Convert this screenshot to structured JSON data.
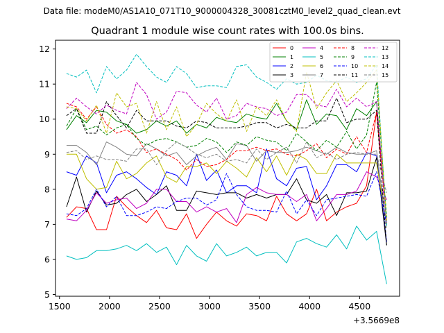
{
  "suptitle": "Data file: modeM0/AS1A10_071T10_9000004328_30081cztM0_level2_quad_clean.evt",
  "chart_data": {
    "type": "line",
    "title": "Quadrant 1 module wise count rates with 100.0s bins.",
    "xlabel": "",
    "ylabel": "",
    "offset_text": "+3.5669e8",
    "xlim": [
      1460,
      4900
    ],
    "ylim": [
      4.95,
      12.25
    ],
    "x_ticks": [
      1500,
      2000,
      2500,
      3000,
      3500,
      4000,
      4500
    ],
    "y_ticks": [
      5,
      6,
      7,
      8,
      9,
      10,
      11,
      12
    ],
    "grid": false,
    "legend_position": "top-right",
    "x": [
      1570,
      1670,
      1770,
      1870,
      1970,
      2070,
      2170,
      2270,
      2370,
      2470,
      2570,
      2670,
      2770,
      2870,
      2970,
      3070,
      3170,
      3270,
      3370,
      3470,
      3570,
      3670,
      3770,
      3870,
      3970,
      4070,
      4170,
      4270,
      4370,
      4470,
      4570,
      4670,
      4770
    ],
    "series": [
      {
        "name": "0",
        "color": "#ff0000",
        "dashed": false,
        "values": [
          7.2,
          7.5,
          7.45,
          6.85,
          6.85,
          7.8,
          7.5,
          7.25,
          7.05,
          7.4,
          6.9,
          6.85,
          7.3,
          6.6,
          7.0,
          7.35,
          7.1,
          6.95,
          7.3,
          7.25,
          7.1,
          7.8,
          7.3,
          7.1,
          7.3,
          8.0,
          7.1,
          7.35,
          7.5,
          7.6,
          8.1,
          10.2,
          7.1
        ]
      },
      {
        "name": "1",
        "color": "#008000",
        "dashed": false,
        "values": [
          9.7,
          10.1,
          9.9,
          10.25,
          10.2,
          9.95,
          9.85,
          9.6,
          9.7,
          9.95,
          9.8,
          9.95,
          9.6,
          9.85,
          9.75,
          10.05,
          9.95,
          9.9,
          10.15,
          10.05,
          10.0,
          10.45,
          9.95,
          9.7,
          10.55,
          9.85,
          10.15,
          10.1,
          9.7,
          10.3,
          10.1,
          10.5,
          7.0
        ]
      },
      {
        "name": "2",
        "color": "#0000ff",
        "dashed": false,
        "values": [
          8.5,
          8.4,
          8.95,
          8.75,
          7.9,
          8.4,
          8.5,
          8.3,
          8.05,
          7.85,
          8.5,
          8.4,
          8.1,
          9.0,
          8.25,
          8.55,
          7.9,
          8.1,
          8.1,
          7.9,
          9.15,
          8.3,
          8.1,
          8.6,
          8.65,
          7.7,
          8.1,
          8.7,
          8.7,
          8.5,
          9.05,
          8.95,
          6.5
        ]
      },
      {
        "name": "3",
        "color": "#000000",
        "dashed": false,
        "values": [
          7.5,
          8.35,
          7.35,
          7.95,
          7.55,
          7.6,
          7.85,
          8.0,
          7.65,
          7.85,
          8.1,
          7.4,
          7.4,
          7.95,
          7.9,
          7.85,
          7.9,
          7.9,
          7.75,
          7.85,
          7.75,
          7.85,
          7.85,
          8.3,
          7.7,
          7.6,
          7.85,
          7.25,
          7.9,
          7.9,
          7.95,
          8.9,
          6.4
        ]
      },
      {
        "name": "4",
        "color": "#c000c0",
        "dashed": false,
        "values": [
          7.15,
          7.1,
          7.4,
          7.9,
          7.6,
          7.7,
          7.75,
          7.45,
          7.6,
          8.0,
          8.0,
          7.65,
          7.65,
          7.35,
          7.5,
          7.35,
          7.45,
          7.05,
          7.85,
          8.05,
          7.9,
          7.85,
          7.85,
          7.65,
          7.85,
          7.1,
          7.45,
          7.85,
          7.85,
          7.95,
          8.5,
          8.35,
          7.7
        ]
      },
      {
        "name": "5",
        "color": "#00bfbf",
        "dashed": false,
        "values": [
          6.1,
          6.0,
          6.05,
          6.25,
          6.25,
          6.3,
          6.4,
          6.25,
          6.45,
          6.2,
          6.35,
          5.85,
          6.4,
          6.1,
          5.95,
          6.45,
          6.1,
          6.2,
          6.35,
          6.1,
          6.2,
          6.2,
          5.9,
          6.5,
          6.6,
          6.45,
          6.35,
          6.7,
          6.3,
          6.95,
          6.55,
          6.8,
          5.3
        ]
      },
      {
        "name": "6",
        "color": "#bfbf00",
        "dashed": false,
        "values": [
          9.0,
          9.0,
          8.3,
          8.0,
          8.05,
          8.8,
          8.3,
          8.45,
          8.75,
          8.95,
          8.35,
          8.2,
          8.65,
          8.65,
          8.75,
          8.45,
          8.8,
          8.6,
          8.35,
          8.9,
          8.5,
          8.95,
          8.4,
          9.0,
          8.85,
          8.45,
          8.45,
          9.0,
          8.75,
          8.75,
          8.75,
          8.75,
          7.0
        ]
      },
      {
        "name": "7",
        "color": "#808080",
        "dashed": false,
        "values": [
          9.25,
          9.25,
          9.05,
          8.7,
          9.35,
          9.2,
          9.0,
          8.95,
          9.3,
          9.15,
          8.95,
          9.05,
          8.7,
          8.95,
          9.1,
          9.2,
          8.85,
          9.3,
          9.25,
          8.8,
          9.1,
          9.05,
          9.05,
          9.1,
          9.2,
          9.1,
          9.0,
          9.2,
          9.05,
          9.0,
          9.0,
          9.1,
          6.9
        ]
      },
      {
        "name": "8",
        "color": "#ff0000",
        "dashed": true,
        "values": [
          10.45,
          10.35,
          10.0,
          10.35,
          9.85,
          9.6,
          9.7,
          9.5,
          9.05,
          9.15,
          9.0,
          8.85,
          8.55,
          8.85,
          8.65,
          8.7,
          8.85,
          9.1,
          9.1,
          9.2,
          9.1,
          9.15,
          9.0,
          8.95,
          9.1,
          9.3,
          8.9,
          9.15,
          9.0,
          9.5,
          9.05,
          10.2,
          7.1
        ]
      },
      {
        "name": "9",
        "color": "#008000",
        "dashed": true,
        "values": [
          9.8,
          10.3,
          9.7,
          9.8,
          9.55,
          9.75,
          9.85,
          9.45,
          9.25,
          9.4,
          9.45,
          9.35,
          9.2,
          9.25,
          9.45,
          9.35,
          9.05,
          9.35,
          9.25,
          9.5,
          9.4,
          9.35,
          9.1,
          9.6,
          9.35,
          9.1,
          9.4,
          9.2,
          9.65,
          9.15,
          9.55,
          11.05,
          7.2
        ]
      },
      {
        "name": "10",
        "color": "#0000ff",
        "dashed": true,
        "values": [
          7.3,
          7.25,
          7.45,
          8.0,
          7.5,
          7.8,
          7.25,
          7.25,
          7.35,
          7.5,
          7.45,
          7.65,
          7.75,
          7.75,
          7.55,
          7.7,
          8.45,
          7.85,
          7.5,
          7.4,
          7.4,
          7.35,
          7.95,
          7.3,
          7.7,
          7.25,
          7.7,
          7.75,
          7.8,
          7.85,
          7.8,
          8.5,
          7.0
        ]
      },
      {
        "name": "11",
        "color": "#000000",
        "dashed": true,
        "values": [
          10.1,
          10.3,
          9.6,
          9.6,
          10.5,
          10.1,
          9.75,
          10.25,
          9.95,
          9.95,
          9.95,
          9.8,
          9.75,
          9.95,
          9.9,
          9.75,
          9.75,
          9.75,
          9.8,
          9.9,
          9.9,
          9.75,
          9.85,
          9.75,
          9.75,
          9.95,
          9.95,
          10.6,
          9.9,
          10.0,
          10.0,
          10.25,
          6.4
        ]
      },
      {
        "name": "12",
        "color": "#c000c0",
        "dashed": true,
        "values": [
          10.3,
          10.6,
          10.35,
          10.15,
          10.4,
          10.25,
          10.15,
          11.05,
          10.7,
          10.0,
          10.2,
          10.8,
          10.75,
          10.4,
          10.2,
          10.6,
          10.0,
          10.1,
          10.45,
          10.35,
          10.3,
          10.1,
          10.2,
          10.7,
          10.7,
          10.4,
          10.35,
          10.85,
          10.35,
          10.6,
          10.35,
          10.5,
          7.0
        ]
      },
      {
        "name": "13",
        "color": "#00bfbf",
        "dashed": true,
        "values": [
          11.3,
          11.2,
          11.4,
          10.75,
          11.5,
          11.15,
          11.4,
          11.85,
          11.5,
          11.2,
          11.05,
          11.5,
          11.3,
          10.9,
          10.95,
          10.95,
          10.9,
          11.5,
          11.55,
          11.2,
          11.05,
          10.85,
          11.15,
          11.0,
          11.05,
          11.25,
          11.1,
          11.05,
          11.2,
          11.05,
          11.15,
          11.55,
          6.95
        ]
      },
      {
        "name": "14",
        "color": "#bfbf00",
        "dashed": true,
        "values": [
          10.35,
          10.3,
          9.95,
          10.4,
          9.6,
          10.75,
          10.35,
          10.45,
          9.6,
          10.5,
          9.7,
          10.35,
          9.5,
          9.85,
          10.45,
          10.15,
          9.95,
          10.55,
          9.65,
          10.35,
          10.1,
          10.55,
          9.95,
          9.65,
          11.35,
          10.3,
          10.75,
          11.1,
          10.5,
          10.75,
          11.05,
          11.4,
          7.05
        ]
      },
      {
        "name": "15",
        "color": "#808080",
        "dashed": true,
        "values": [
          9.05,
          9.1,
          8.85,
          8.95,
          8.85,
          8.85,
          8.8,
          9.15,
          9.15,
          8.7,
          9.1,
          9.35,
          9.2,
          9.0,
          8.9,
          9.0,
          8.8,
          8.85,
          8.75,
          9.15,
          8.85,
          9.05,
          9.2,
          8.75,
          9.35,
          8.9,
          9.05,
          8.85,
          9.0,
          9.05,
          9.0,
          9.0,
          7.9
        ]
      }
    ]
  }
}
